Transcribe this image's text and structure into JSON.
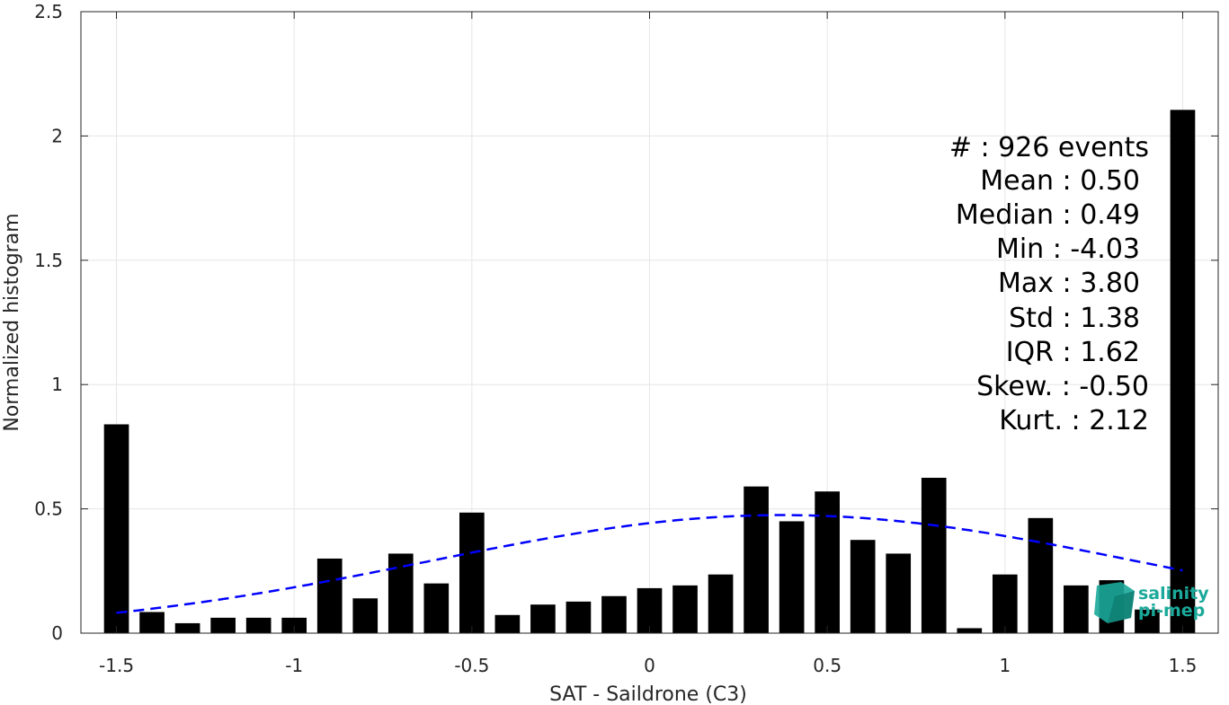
{
  "chart_data": {
    "type": "bar",
    "xlabel": "SAT - Saildrone (C3)",
    "ylabel": "Normalized histogram",
    "xlim": [
      -1.6,
      1.6
    ],
    "ylim": [
      0,
      2.5
    ],
    "x_ticks": [
      -1.5,
      -1,
      -0.5,
      0,
      0.5,
      1,
      1.5
    ],
    "x_tick_labels": [
      "-1.5",
      "-1",
      "-0.5",
      "0",
      "0.5",
      "1",
      "1.5"
    ],
    "y_ticks": [
      0,
      0.5,
      1,
      1.5,
      2,
      2.5
    ],
    "y_tick_labels": [
      "0",
      "0.5",
      "1",
      "1.5",
      "2",
      "2.5"
    ],
    "grid": true,
    "bar_width": 0.07,
    "bar_color": "#000000",
    "bins": [
      {
        "x": -1.5,
        "value": 0.84
      },
      {
        "x": -1.4,
        "value": 0.085
      },
      {
        "x": -1.3,
        "value": 0.04
      },
      {
        "x": -1.2,
        "value": 0.062
      },
      {
        "x": -1.1,
        "value": 0.062
      },
      {
        "x": -1.0,
        "value": 0.062
      },
      {
        "x": -0.9,
        "value": 0.3
      },
      {
        "x": -0.8,
        "value": 0.14
      },
      {
        "x": -0.7,
        "value": 0.32
      },
      {
        "x": -0.6,
        "value": 0.2
      },
      {
        "x": -0.5,
        "value": 0.485
      },
      {
        "x": -0.4,
        "value": 0.073
      },
      {
        "x": -0.3,
        "value": 0.115
      },
      {
        "x": -0.2,
        "value": 0.127
      },
      {
        "x": -0.1,
        "value": 0.149
      },
      {
        "x": 0.0,
        "value": 0.181
      },
      {
        "x": 0.1,
        "value": 0.192
      },
      {
        "x": 0.2,
        "value": 0.236
      },
      {
        "x": 0.3,
        "value": 0.59
      },
      {
        "x": 0.4,
        "value": 0.45
      },
      {
        "x": 0.5,
        "value": 0.57
      },
      {
        "x": 0.6,
        "value": 0.375
      },
      {
        "x": 0.7,
        "value": 0.32
      },
      {
        "x": 0.8,
        "value": 0.625
      },
      {
        "x": 0.9,
        "value": 0.02
      },
      {
        "x": 1.0,
        "value": 0.236
      },
      {
        "x": 1.1,
        "value": 0.463
      },
      {
        "x": 1.2,
        "value": 0.192
      },
      {
        "x": 1.3,
        "value": 0.213
      },
      {
        "x": 1.4,
        "value": 0.095
      },
      {
        "x": 1.5,
        "value": 2.105
      }
    ],
    "fit_curve": {
      "type": "gaussian",
      "mean": 0.375,
      "std": 1.0,
      "peak": 0.475,
      "x_range": [
        -1.5,
        1.5
      ],
      "color": "#0000ff",
      "style": "dashed"
    },
    "stats": [
      "#  : 926 events",
      "Mean : 0.50",
      "Median : 0.49",
      "Min : -4.03",
      "Max : 3.80",
      "Std : 1.38",
      "IQR : 1.62",
      "Skew. : -0.50",
      "Kurt. : 2.12"
    ],
    "stats_placement": "top-right"
  },
  "logo": {
    "line1": "salinity",
    "line2": "pi-mep",
    "color": "#1aa99a"
  }
}
